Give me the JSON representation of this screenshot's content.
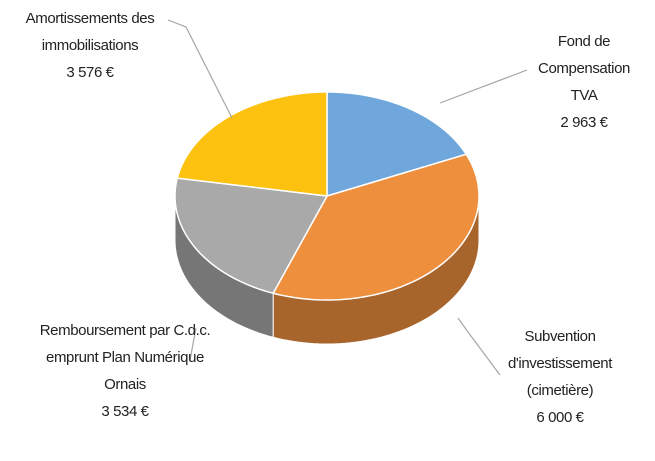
{
  "chart_data": {
    "type": "pie3d",
    "categories": [
      "Fond de Compensation TVA",
      "Subvention d'investissement (cimetière)",
      "Remboursement par C.d.c. emprunt Plan Numérique Ornais",
      "Amortissements des immobilisations"
    ],
    "values": [
      2963,
      6000,
      3534,
      3576
    ],
    "value_labels": [
      "2 963 €",
      "6 000 €",
      "3 534 €",
      "3 576 €"
    ],
    "colors": [
      "#6fa7dc",
      "#ee8f3e",
      "#a9a9a9",
      "#fdc210"
    ]
  }
}
